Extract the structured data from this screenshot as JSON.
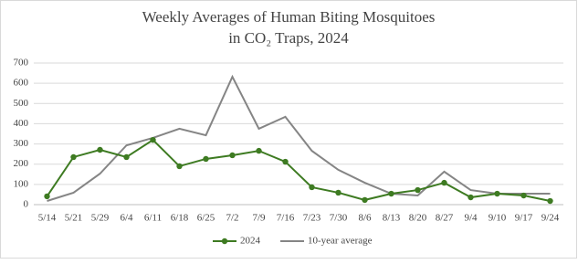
{
  "chart_data": {
    "type": "line",
    "title": [
      "Weekly Averages of Human Biting Mosquitoes",
      "in CO₂ Traps, 2024"
    ],
    "categories": [
      "5/14",
      "5/21",
      "5/29",
      "6/4",
      "6/11",
      "6/18",
      "6/25",
      "7/2",
      "7/9",
      "7/16",
      "7/23",
      "7/30",
      "8/6",
      "8/13",
      "8/20",
      "8/27",
      "9/4",
      "9/10",
      "9/17",
      "9/24"
    ],
    "series": [
      {
        "name": "2024",
        "color": "#3e7b22",
        "markers": true,
        "values": [
          41,
          235,
          271,
          235,
          320,
          190,
          226,
          244,
          266,
          212,
          86,
          59,
          23,
          54,
          72,
          108,
          36,
          54,
          45,
          18
        ]
      },
      {
        "name": "10-year average",
        "color": "#858585",
        "markers": false,
        "values": [
          18,
          59,
          153,
          293,
          330,
          375,
          343,
          632,
          375,
          434,
          266,
          172,
          108,
          54,
          45,
          163,
          72,
          54,
          54,
          54
        ]
      }
    ],
    "ylim": [
      0,
      700
    ],
    "yticks": [
      0,
      100,
      200,
      300,
      400,
      500,
      600,
      700
    ],
    "grid": true,
    "legend": "bottom"
  }
}
